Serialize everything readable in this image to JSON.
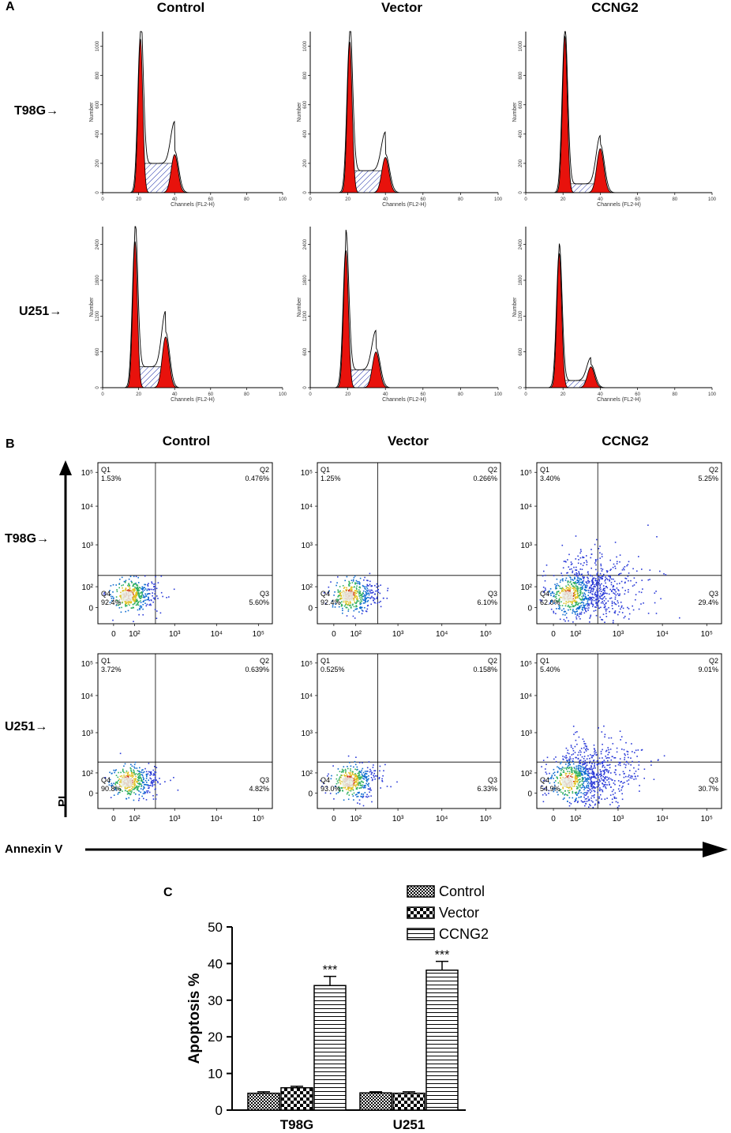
{
  "panels": {
    "a": "A",
    "b": "B",
    "c": "C"
  },
  "columns": [
    "Control",
    "Vector",
    "CCNG2"
  ],
  "cell_lines": [
    {
      "name": "T98G",
      "label": "T98G→"
    },
    {
      "name": "U251",
      "label": "U251→"
    }
  ],
  "histograms": {
    "xlabel": "Channels (FL2-H)",
    "ylabel": "Number",
    "x_ticks": [
      "0",
      "20",
      "40",
      "60",
      "80",
      "100"
    ],
    "rows": [
      {
        "y_ticks": [
          "0",
          "200",
          "400",
          "600",
          "800",
          "1000"
        ],
        "ymax": 1100,
        "cells": [
          {
            "g1_peak": 21,
            "g1_height": 1050,
            "g2_peak": 40,
            "g2_height": 260,
            "s_level": 200
          },
          {
            "g1_peak": 21,
            "g1_height": 1030,
            "g2_peak": 40,
            "g2_height": 240,
            "s_level": 150
          },
          {
            "g1_peak": 21,
            "g1_height": 1070,
            "g2_peak": 40,
            "g2_height": 300,
            "s_level": 60
          }
        ]
      },
      {
        "y_ticks": [
          "0",
          "600",
          "1200",
          "1800",
          "2400"
        ],
        "ymax": 2700,
        "cells": [
          {
            "g1_peak": 18,
            "g1_height": 2450,
            "g2_peak": 35,
            "g2_height": 850,
            "s_level": 350
          },
          {
            "g1_peak": 19,
            "g1_height": 2300,
            "g2_peak": 35,
            "g2_height": 600,
            "s_level": 300
          },
          {
            "g1_peak": 18,
            "g1_height": 2250,
            "g2_peak": 35,
            "g2_height": 350,
            "s_level": 120
          }
        ]
      }
    ]
  },
  "flow": {
    "x_ticks": [
      "0",
      "10²",
      "10³",
      "10⁴",
      "10⁵"
    ],
    "y_ticks": [
      "0",
      "10²",
      "10³",
      "10⁴",
      "10⁵"
    ],
    "x_axis_label": "Annexin V",
    "y_axis_label": "PI",
    "quadrant_names": [
      "Q1",
      "Q2",
      "Q3",
      "Q4"
    ],
    "rows": [
      [
        {
          "q1": "1.53%",
          "q2": "0.476%",
          "q3": "5.60%",
          "q4": "92.4%"
        },
        {
          "q1": "1.25%",
          "q2": "0.266%",
          "q3": "6.10%",
          "q4": "92.4%"
        },
        {
          "q1": "3.40%",
          "q2": "5.25%",
          "q3": "29.4%",
          "q4": "62.0%"
        }
      ],
      [
        {
          "q1": "3.72%",
          "q2": "0.639%",
          "q3": "4.82%",
          "q4": "90.8%"
        },
        {
          "q1": "0.525%",
          "q2": "0.158%",
          "q3": "6.33%",
          "q4": "93.0%"
        },
        {
          "q1": "5.40%",
          "q2": "9.01%",
          "q3": "30.7%",
          "q4": "54.9%"
        }
      ]
    ]
  },
  "chart_data": {
    "type": "bar",
    "ylabel": "Apoptosis %",
    "ylim": [
      0,
      50
    ],
    "y_ticks": [
      "0",
      "10",
      "20",
      "30",
      "40",
      "50"
    ],
    "categories": [
      "T98G",
      "U251"
    ],
    "series": [
      {
        "name": "Control",
        "values": [
          4.6,
          4.7
        ],
        "errors": [
          0.4,
          0.3
        ]
      },
      {
        "name": "Vector",
        "values": [
          6.1,
          4.6
        ],
        "errors": [
          0.4,
          0.4
        ]
      },
      {
        "name": "CCNG2",
        "values": [
          34.0,
          38.2
        ],
        "errors": [
          2.5,
          2.4
        ]
      }
    ],
    "significance": [
      "***",
      "***"
    ],
    "legend_position": "top-right"
  }
}
